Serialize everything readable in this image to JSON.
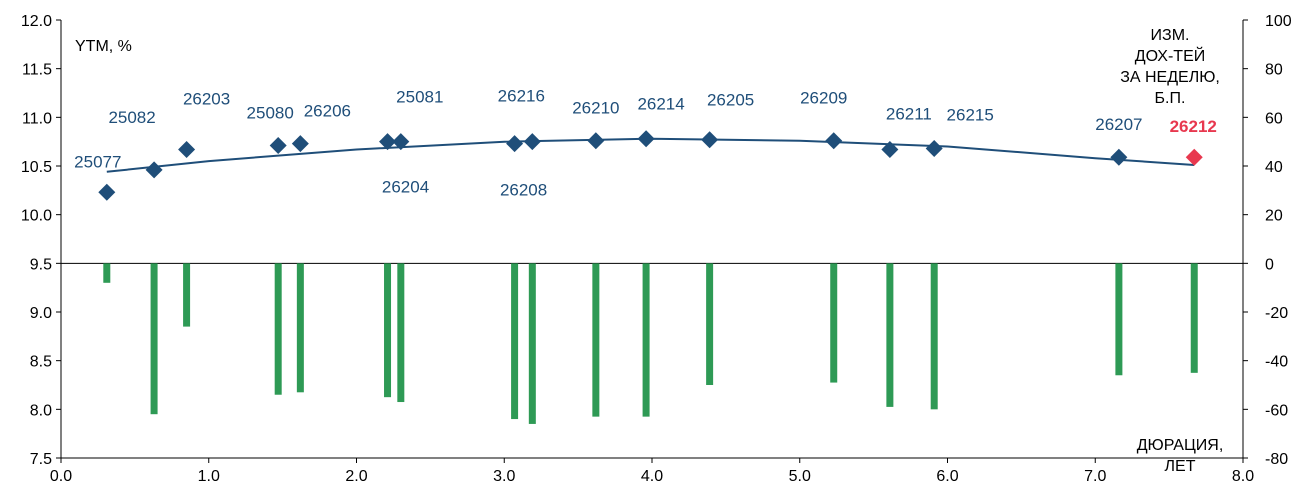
{
  "chart_data": {
    "type": "scatter",
    "title": "",
    "ylabel_left": "YTM, %",
    "ylabel_right": [
      "ИЗМ.",
      "ДОХ-ТЕЙ",
      "ЗА НЕДЕЛЮ,",
      "Б.П."
    ],
    "xlabel": [
      "ДЮРАЦИЯ,",
      "ЛЕТ"
    ],
    "xlim": [
      0,
      8
    ],
    "ylim_left": [
      7.5,
      12
    ],
    "ylim_right": [
      -80,
      100
    ],
    "x_ticks": [
      "0.0",
      "1.0",
      "2.0",
      "3.0",
      "4.0",
      "5.0",
      "6.0",
      "7.0",
      "8.0"
    ],
    "y_left_ticks": [
      "12.0",
      "11.5",
      "11.0",
      "10.5",
      "10.0",
      "9.5",
      "9.0",
      "8.5",
      "8.0",
      "7.5"
    ],
    "y_right_ticks": [
      "100",
      "80",
      "60",
      "40",
      "20",
      "0",
      "-20",
      "-40",
      "-60",
      "-80"
    ],
    "colors": {
      "marker": "#1f4e79",
      "highlight": "#e8384f",
      "bar": "#2e9a55",
      "curve": "#1f4e79"
    },
    "series": [
      {
        "name": "YTM",
        "axis": "left",
        "points": [
          {
            "label": "25077",
            "x": 0.31,
            "y": 10.23,
            "change_bp": -8
          },
          {
            "label": "25082",
            "x": 0.63,
            "y": 10.46,
            "change_bp": -62
          },
          {
            "label": "26203",
            "x": 0.85,
            "y": 10.67,
            "change_bp": -26
          },
          {
            "label": "25080",
            "x": 1.47,
            "y": 10.71,
            "change_bp": -54
          },
          {
            "label": "26206",
            "x": 1.62,
            "y": 10.73,
            "change_bp": -53
          },
          {
            "label": "26204",
            "x": 2.21,
            "y": 10.75,
            "change_bp": -55
          },
          {
            "label": "25081",
            "x": 2.3,
            "y": 10.75,
            "change_bp": -57
          },
          {
            "label": "26208",
            "x": 3.07,
            "y": 10.73,
            "change_bp": -64
          },
          {
            "label": "26216",
            "x": 3.19,
            "y": 10.75,
            "change_bp": -66
          },
          {
            "label": "26210",
            "x": 3.62,
            "y": 10.76,
            "change_bp": -63
          },
          {
            "label": "26214",
            "x": 3.96,
            "y": 10.78,
            "change_bp": -63
          },
          {
            "label": "26205",
            "x": 4.39,
            "y": 10.77,
            "change_bp": -50
          },
          {
            "label": "26209",
            "x": 5.23,
            "y": 10.76,
            "change_bp": -49
          },
          {
            "label": "26211",
            "x": 5.61,
            "y": 10.67,
            "change_bp": -59
          },
          {
            "label": "26215",
            "x": 5.91,
            "y": 10.68,
            "change_bp": -60
          },
          {
            "label": "26207",
            "x": 7.16,
            "y": 10.59,
            "change_bp": -46
          },
          {
            "label": "26212",
            "x": 7.67,
            "y": 10.59,
            "change_bp": -45,
            "highlight": true
          }
        ]
      },
      {
        "name": "ИЗМ. ДОХ-ТЕЙ ЗА НЕДЕЛЮ, Б.П.",
        "axis": "right",
        "type": "bar",
        "source": "points.change_bp"
      }
    ],
    "fit_curve": {
      "type": "quadratic",
      "x_range": [
        0.31,
        7.67
      ],
      "x": [
        0.31,
        1.0,
        2.0,
        3.0,
        4.0,
        5.0,
        6.0,
        7.0,
        7.67
      ],
      "y": [
        10.44,
        10.55,
        10.67,
        10.75,
        10.78,
        10.76,
        10.7,
        10.58,
        10.51
      ]
    }
  }
}
